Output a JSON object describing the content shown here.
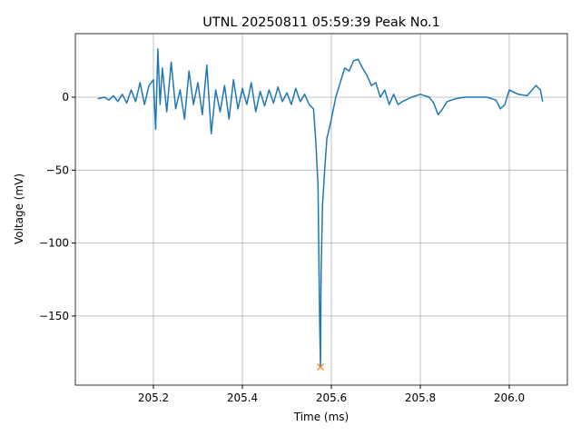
{
  "chart_data": {
    "type": "line",
    "title": "UTNL 20250811 05:59:39 Peak No.1",
    "x_label": "Time (ms)",
    "y_label": "Voltage (mV)",
    "x": [
      205.075,
      205.09,
      205.1,
      205.11,
      205.12,
      205.13,
      205.14,
      205.15,
      205.16,
      205.17,
      205.18,
      205.19,
      205.2,
      205.205,
      205.21,
      205.215,
      205.22,
      205.23,
      205.24,
      205.25,
      205.26,
      205.27,
      205.28,
      205.29,
      205.3,
      205.31,
      205.32,
      205.33,
      205.34,
      205.35,
      205.36,
      205.37,
      205.38,
      205.39,
      205.4,
      205.41,
      205.42,
      205.43,
      205.44,
      205.45,
      205.46,
      205.47,
      205.48,
      205.49,
      205.5,
      205.51,
      205.52,
      205.53,
      205.54,
      205.55,
      205.56,
      205.565,
      205.57,
      205.5735,
      205.5755,
      205.577,
      205.58,
      205.585,
      205.59,
      205.595,
      205.6,
      205.61,
      205.62,
      205.63,
      205.64,
      205.65,
      205.66,
      205.67,
      205.68,
      205.69,
      205.7,
      205.71,
      205.72,
      205.73,
      205.74,
      205.75,
      205.76,
      205.78,
      205.8,
      205.82,
      205.83,
      205.84,
      205.85,
      205.86,
      205.88,
      205.9,
      205.95,
      205.97,
      205.98,
      205.99,
      206.0,
      206.02,
      206.04,
      206.06,
      206.07,
      206.075
    ],
    "series": [
      {
        "color": "#1f77b4",
        "values": [
          -1,
          0,
          -2,
          1,
          -3,
          2,
          -4,
          5,
          -3,
          10,
          -5,
          8,
          12,
          -22,
          33,
          -5,
          20,
          -10,
          24,
          -8,
          5,
          -15,
          18,
          -5,
          10,
          -12,
          22,
          -25,
          5,
          -10,
          8,
          -15,
          12,
          -8,
          6,
          -5,
          10,
          -10,
          4,
          -6,
          5,
          -4,
          7,
          -3,
          3,
          -5,
          6,
          -3,
          2,
          -5,
          -8,
          -30,
          -60,
          -150,
          -185,
          -120,
          -75,
          -50,
          -28,
          -22,
          -15,
          0,
          10,
          20,
          18,
          25,
          26,
          20,
          15,
          8,
          10,
          0,
          5,
          -5,
          2,
          -5,
          -3,
          0,
          2,
          0,
          -4,
          -12,
          -8,
          -3,
          -1,
          0,
          0,
          -2,
          -8,
          -5,
          5,
          2,
          1,
          8,
          5,
          -3
        ]
      }
    ],
    "peak": {
      "x": 205.5755,
      "y": -185,
      "color": "#ff7f0e"
    },
    "xlim": [
      205.0245,
      206.1306
    ],
    "ylim": [
      -197.4,
      43.6
    ],
    "xticks": [
      205.2,
      205.4,
      205.6,
      205.8,
      {
        "value": 206,
        "label": "206.0"
      }
    ],
    "yticks": [
      {
        "value": -150,
        "label": "−150"
      },
      {
        "value": -100,
        "label": "−100"
      },
      {
        "value": -50,
        "label": "−50"
      },
      0
    ],
    "grid": true
  }
}
